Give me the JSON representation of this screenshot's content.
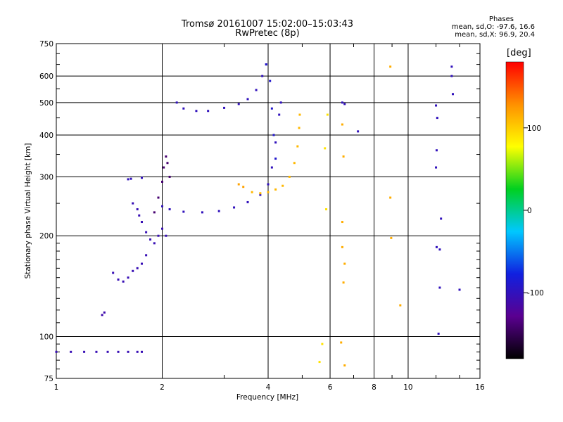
{
  "title": {
    "line1": "Tromsø 20161007 15:02:00–15:03:43",
    "line2": "RwPretec (8p)"
  },
  "stats": {
    "header": "Phases",
    "o_line": "mean, sd,O: -97.6, 16.6",
    "x_line": "mean, sd,X:  96.9, 20.4"
  },
  "colorbar": {
    "title": "[deg]",
    "ticks": [
      100,
      0,
      -100
    ],
    "range": [
      -180,
      180
    ],
    "colors": [
      "#000000",
      "#5a0090",
      "#1020e0",
      "#00c8ff",
      "#00d020",
      "#ffff00",
      "#ff9000",
      "#ff0000"
    ]
  },
  "chart_data": {
    "type": "scatter",
    "xlabel": "Frequency [MHz]",
    "ylabel": "Stationary phase Virtual Height [km]",
    "xscale": "log",
    "yscale": "log",
    "xlim": [
      1,
      16
    ],
    "ylim": [
      75,
      750
    ],
    "xticks": [
      1,
      2,
      4,
      6,
      8,
      10,
      16
    ],
    "yticks": [
      75,
      100,
      200,
      300,
      400,
      500,
      600,
      750
    ],
    "grid": true,
    "series": [
      {
        "points": [
          [
            1.0,
            90
          ],
          [
            1.1,
            90
          ],
          [
            1.2,
            90
          ],
          [
            1.3,
            90
          ],
          [
            1.4,
            90
          ],
          [
            1.5,
            90
          ],
          [
            1.6,
            90
          ],
          [
            1.7,
            90
          ],
          [
            1.75,
            90
          ]
        ],
        "phase": -105
      },
      {
        "points": [
          [
            1.35,
            116
          ],
          [
            1.37,
            118
          ]
        ],
        "phase": -110
      },
      {
        "points": [
          [
            1.45,
            155
          ],
          [
            1.5,
            148
          ],
          [
            1.55,
            146
          ],
          [
            1.6,
            150
          ],
          [
            1.65,
            157
          ],
          [
            1.7,
            160
          ],
          [
            1.75,
            165
          ],
          [
            1.8,
            175
          ]
        ],
        "phase": -105
      },
      {
        "points": [
          [
            1.6,
            295
          ],
          [
            1.63,
            296
          ],
          [
            1.75,
            298
          ]
        ],
        "phase": -100
      },
      {
        "points": [
          [
            1.65,
            250
          ],
          [
            1.7,
            240
          ],
          [
            1.72,
            230
          ],
          [
            1.75,
            220
          ],
          [
            1.8,
            205
          ],
          [
            1.85,
            195
          ],
          [
            1.9,
            190
          ],
          [
            1.95,
            200
          ],
          [
            2.0,
            210
          ],
          [
            2.05,
            200
          ]
        ],
        "phase": -105
      },
      {
        "points": [
          [
            1.9,
            235
          ],
          [
            1.95,
            260
          ],
          [
            2.0,
            290
          ],
          [
            2.02,
            320
          ],
          [
            2.05,
            345
          ],
          [
            2.07,
            330
          ],
          [
            2.1,
            300
          ]
        ],
        "phase": -140
      },
      {
        "points": [
          [
            2.0,
            245
          ],
          [
            2.1,
            240
          ],
          [
            2.3,
            236
          ],
          [
            2.6,
            235
          ],
          [
            2.9,
            237
          ],
          [
            3.2,
            243
          ],
          [
            3.5,
            252
          ],
          [
            3.8,
            265
          ],
          [
            4.0,
            285
          ],
          [
            4.1,
            320
          ],
          [
            4.2,
            380
          ],
          [
            4.3,
            460
          ],
          [
            4.35,
            500
          ]
        ],
        "phase": -100
      },
      {
        "points": [
          [
            2.2,
            500
          ],
          [
            2.3,
            480
          ],
          [
            2.5,
            472
          ],
          [
            2.7,
            472
          ],
          [
            3.0,
            482
          ],
          [
            3.3,
            495
          ],
          [
            3.5,
            512
          ],
          [
            3.7,
            545
          ],
          [
            3.85,
            600
          ],
          [
            3.95,
            650
          ]
        ],
        "phase": -100
      },
      {
        "points": [
          [
            3.95,
            650
          ],
          [
            4.05,
            580
          ],
          [
            4.1,
            480
          ],
          [
            4.15,
            400
          ],
          [
            4.2,
            340
          ]
        ],
        "phase": -90
      },
      {
        "points": [
          [
            3.6,
            270
          ],
          [
            3.8,
            268
          ],
          [
            4.0,
            270
          ],
          [
            4.2,
            275
          ],
          [
            4.4,
            282
          ],
          [
            4.6,
            300
          ],
          [
            4.75,
            330
          ],
          [
            4.85,
            370
          ],
          [
            4.9,
            420
          ],
          [
            4.92,
            460
          ]
        ],
        "phase": 110
      },
      {
        "points": [
          [
            3.3,
            285
          ],
          [
            3.4,
            280
          ]
        ],
        "phase": 120
      },
      {
        "points": [
          [
            6.5,
            500
          ],
          [
            6.6,
            495
          ],
          [
            7.2,
            410
          ]
        ],
        "phase": -100
      },
      {
        "points": [
          [
            6.5,
            185
          ],
          [
            6.55,
            145
          ],
          [
            6.45,
            96
          ],
          [
            6.6,
            82
          ],
          [
            6.5,
            220
          ],
          [
            6.55,
            345
          ],
          [
            6.5,
            430
          ],
          [
            6.6,
            165
          ]
        ],
        "phase": 115
      },
      {
        "points": [
          [
            8.9,
            640
          ],
          [
            8.9,
            260
          ],
          [
            8.95,
            197
          ],
          [
            9.5,
            124
          ]
        ],
        "phase": 115
      },
      {
        "points": [
          [
            12.0,
            490
          ],
          [
            12.1,
            450
          ],
          [
            12.05,
            360
          ],
          [
            12.0,
            320
          ],
          [
            12.05,
            185
          ],
          [
            12.3,
            182
          ],
          [
            12.2,
            102
          ],
          [
            12.4,
            225
          ],
          [
            12.3,
            140
          ],
          [
            13.3,
            640
          ],
          [
            13.3,
            600
          ],
          [
            13.4,
            530
          ],
          [
            14.0,
            138
          ]
        ],
        "phase": -100
      },
      {
        "points": [
          [
            5.9,
            460
          ],
          [
            5.8,
            365
          ],
          [
            5.85,
            240
          ],
          [
            5.7,
            95
          ],
          [
            5.6,
            84
          ]
        ],
        "phase": 90
      }
    ]
  }
}
